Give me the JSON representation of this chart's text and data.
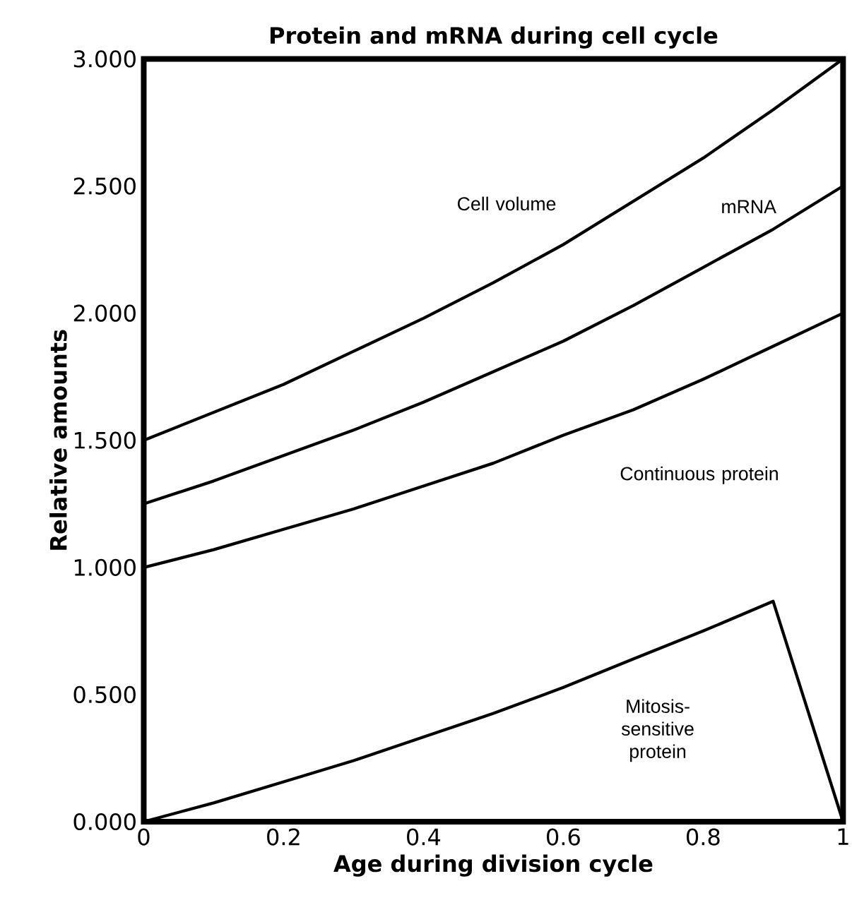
{
  "chart_data": {
    "type": "line",
    "title": "Protein and mRNA during cell cycle",
    "xlabel": "Age during division cycle",
    "ylabel": "Relative amounts",
    "xlim": [
      0,
      1
    ],
    "ylim": [
      0,
      3
    ],
    "xticks": [
      0,
      0.2,
      0.4,
      0.6,
      0.8,
      1
    ],
    "yticks": [
      {
        "value": 0,
        "label": "0.000"
      },
      {
        "value": 0.5,
        "label": "0.500"
      },
      {
        "value": 1,
        "label": "1.000"
      },
      {
        "value": 1.5,
        "label": "1.500"
      },
      {
        "value": 2,
        "label": "2.000"
      },
      {
        "value": 2.5,
        "label": "2.500"
      },
      {
        "value": 3,
        "label": "3.000"
      }
    ],
    "x": [
      0,
      0.1,
      0.2,
      0.3,
      0.4,
      0.5,
      0.6,
      0.7,
      0.8,
      0.9,
      1
    ],
    "series": [
      {
        "name": "Cell volume",
        "color": "#000000",
        "values": [
          1.5,
          1.61,
          1.72,
          1.85,
          1.98,
          2.12,
          2.27,
          2.44,
          2.61,
          2.8,
          3.0
        ]
      },
      {
        "name": "mRNA",
        "color": "#000000",
        "values": [
          1.25,
          1.34,
          1.44,
          1.54,
          1.65,
          1.77,
          1.89,
          2.03,
          2.18,
          2.33,
          2.5
        ]
      },
      {
        "name": "Continuous  protein",
        "color": "#000000",
        "values": [
          1.0,
          1.07,
          1.15,
          1.23,
          1.32,
          1.41,
          1.52,
          1.62,
          1.74,
          1.87,
          2.0
        ]
      },
      {
        "name": "Mitosis-sensitive protein",
        "color": "#000000",
        "values": [
          0,
          0.074,
          0.157,
          0.24,
          0.333,
          0.426,
          0.528,
          0.64,
          0.75,
          0.867,
          0
        ]
      }
    ],
    "grid": false,
    "legend": false,
    "marker": "none",
    "line_style": "solid"
  }
}
